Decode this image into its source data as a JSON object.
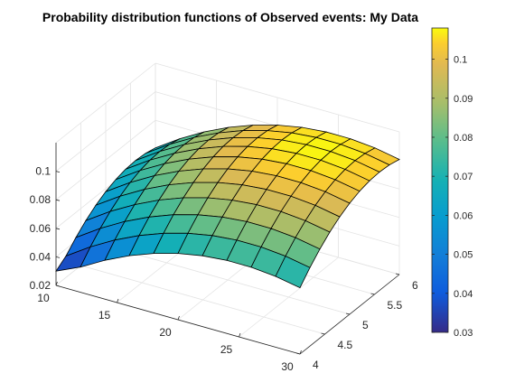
{
  "chart_data": {
    "type": "surface",
    "title": "Probability distribution functions of Observed events: My Data",
    "xlabel": "",
    "ylabel": "",
    "zlabel": "",
    "x": [
      10,
      12,
      14,
      16,
      18,
      20,
      22,
      24,
      26,
      28,
      30
    ],
    "y": [
      4,
      4.2,
      4.4,
      4.6,
      4.8,
      5,
      5.2,
      5.4,
      5.6,
      5.8,
      6
    ],
    "z_model": {
      "description": "z values sampled as a smooth dome surface",
      "z_min": 0.03,
      "z_max": 0.108
    },
    "xlim": [
      10,
      30
    ],
    "ylim": [
      4,
      6
    ],
    "zlim": [
      0.02,
      0.12
    ],
    "x_ticks": [
      "10",
      "15",
      "20",
      "25",
      "30"
    ],
    "y_ticks": [
      "4",
      "4.5",
      "5",
      "5.5",
      "6"
    ],
    "z_ticks": [
      "0.02",
      "0.04",
      "0.06",
      "0.08",
      "0.1"
    ],
    "colorbar": {
      "colormap": "parula",
      "range": [
        0.03,
        0.108
      ],
      "ticks": [
        "0.03",
        "0.04",
        "0.05",
        "0.06",
        "0.07",
        "0.08",
        "0.09",
        "0.1"
      ]
    },
    "grid": true,
    "edge_color": "#000000"
  }
}
